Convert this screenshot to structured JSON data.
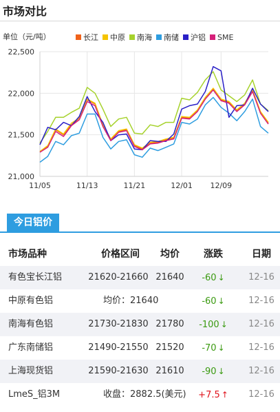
{
  "page": {
    "title": "市场对比"
  },
  "chart": {
    "unit_label": "单位（元/吨）",
    "legend": [
      {
        "name": "长江",
        "color": "#f0621a"
      },
      {
        "name": "中原",
        "color": "#f5c400"
      },
      {
        "name": "南海",
        "color": "#a6d22c"
      },
      {
        "name": "南储",
        "color": "#2e9de0"
      },
      {
        "name": "沪铝",
        "color": "#2a20c7"
      },
      {
        "name": "SME",
        "color": "#d6207a"
      }
    ]
  },
  "chart_data": {
    "type": "line",
    "ylim": [
      21000,
      22500
    ],
    "yticks": [
      "22,500",
      "22,000",
      "21,500",
      "21,000"
    ],
    "ytick_values": [
      22500,
      22000,
      21500,
      21000
    ],
    "xticks": [
      "11/05",
      "11/13",
      "11/21",
      "12/01",
      "12/09"
    ],
    "xtick_index": [
      0,
      6,
      12,
      18,
      23
    ],
    "grid": true,
    "series": [
      {
        "name": "长江",
        "color": "#f0621a",
        "values": [
          21300,
          21360,
          21560,
          21500,
          21620,
          21700,
          21920,
          21870,
          21610,
          21440,
          21540,
          21560,
          21370,
          21330,
          21400,
          21410,
          21440,
          21460,
          21710,
          21700,
          21790,
          21940,
          22050,
          21920,
          21890,
          21790,
          21870,
          22030,
          21770,
          21640
        ]
      },
      {
        "name": "中原",
        "color": "#f5c400",
        "values": [
          21300,
          21370,
          21570,
          21510,
          21640,
          21700,
          21930,
          21880,
          21620,
          21450,
          21550,
          21570,
          21380,
          21340,
          21410,
          21420,
          21450,
          21470,
          21720,
          21710,
          21800,
          21950,
          22060,
          21930,
          21900,
          21800,
          21880,
          22040,
          21780,
          21650
        ]
      },
      {
        "name": "南海",
        "color": "#a6d22c",
        "values": [
          21400,
          21540,
          21710,
          21710,
          21770,
          21820,
          22070,
          22000,
          21810,
          21600,
          21690,
          21710,
          21520,
          21510,
          21620,
          21600,
          21650,
          21650,
          21940,
          21920,
          22010,
          22160,
          22260,
          22040,
          21970,
          21900,
          21980,
          22160,
          21870,
          21790
        ]
      },
      {
        "name": "南储",
        "color": "#2e9de0",
        "values": [
          21170,
          21240,
          21420,
          21380,
          21490,
          21520,
          21750,
          21750,
          21470,
          21330,
          21420,
          21440,
          21260,
          21230,
          21340,
          21310,
          21350,
          21390,
          21650,
          21630,
          21690,
          21860,
          21950,
          21830,
          21760,
          21670,
          21780,
          21930,
          21600,
          21520
        ]
      },
      {
        "name": "沪铝",
        "color": "#2a20c7",
        "values": [
          21380,
          21590,
          21560,
          21650,
          21610,
          21720,
          21960,
          21780,
          21650,
          21430,
          21500,
          21510,
          21330,
          21320,
          21430,
          21420,
          21420,
          21510,
          21810,
          21850,
          21870,
          22020,
          22320,
          22270,
          21710,
          21850,
          21860,
          22060,
          21870,
          21780
        ]
      },
      {
        "name": "SME",
        "color": "#d6207a",
        "values": [
          21290,
          21350,
          21540,
          21480,
          21610,
          21680,
          21900,
          21850,
          21600,
          21430,
          21530,
          21550,
          21360,
          21320,
          21390,
          21400,
          21430,
          21450,
          21700,
          21690,
          21780,
          21930,
          22040,
          21910,
          21880,
          21780,
          21860,
          22020,
          21760,
          21630
        ]
      }
    ]
  },
  "today": {
    "tab_label": "今日铝价"
  },
  "table": {
    "headers": {
      "name": "市场品种",
      "range": "价格区间",
      "avg": "均价",
      "change": "涨跌",
      "date": "日期"
    },
    "rows": [
      {
        "name": "有色宝长江铝",
        "range": "21620-21660",
        "avg": "21640",
        "change": "-60",
        "dir": "down",
        "arrow": "↓",
        "date": "12-16"
      },
      {
        "name": "中原有色铝",
        "merged": "均价：21640",
        "change": "-60",
        "dir": "down",
        "arrow": "↓",
        "date": "12-16"
      },
      {
        "name": "南海有色铝",
        "range": "21730-21830",
        "avg": "21780",
        "change": "-100",
        "dir": "down",
        "arrow": "↓",
        "date": "12-16"
      },
      {
        "name": "广东南储铝",
        "range": "21490-21550",
        "avg": "21520",
        "change": "-70",
        "dir": "down",
        "arrow": "↓",
        "date": "12-16"
      },
      {
        "name": "上海现货铝",
        "range": "21590-21630",
        "avg": "21610",
        "change": "-90",
        "dir": "down",
        "arrow": "↓",
        "date": "12-16"
      },
      {
        "name": "LmeS_铝3M",
        "merged": "收盘：2882.5(美元)",
        "change": "+7.5",
        "dir": "up",
        "arrow": "↑",
        "date": "12-16"
      }
    ]
  }
}
